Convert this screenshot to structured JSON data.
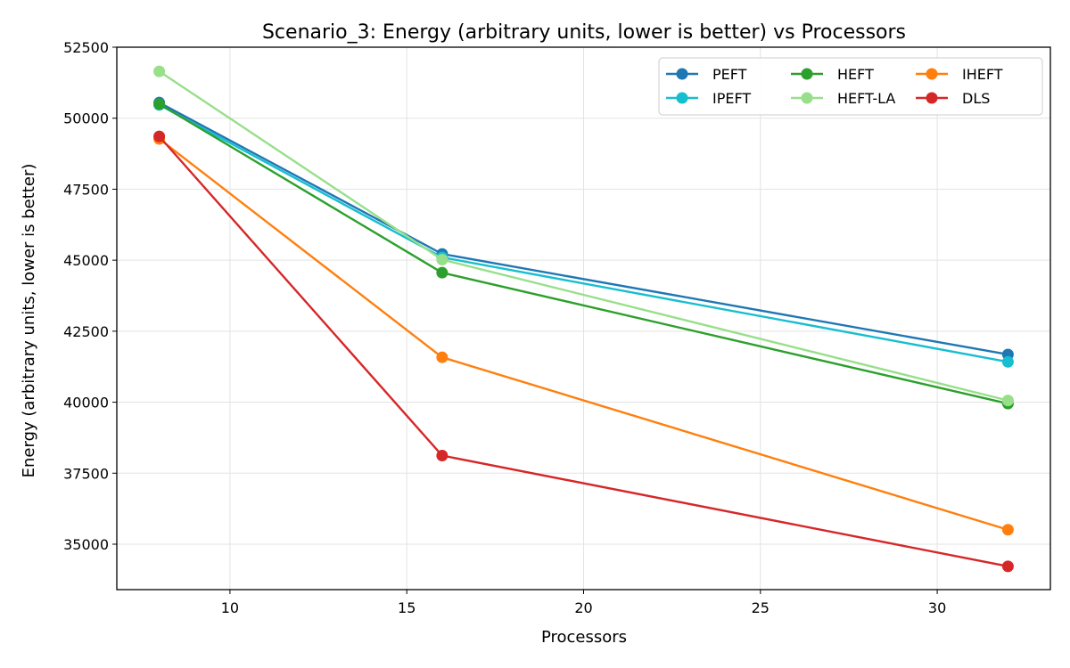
{
  "chart_data": {
    "type": "line",
    "title": "Scenario_3: Energy (arbitrary units, lower is better) vs Processors",
    "xlabel": "Processors",
    "ylabel": "Energy (arbitrary units, lower is better)",
    "xlim": [
      6.8,
      33.2
    ],
    "ylim": [
      33400,
      52500
    ],
    "xticks": [
      10,
      15,
      20,
      25,
      30
    ],
    "yticks": [
      35000,
      37500,
      40000,
      42500,
      45000,
      47500,
      50000,
      52500
    ],
    "grid": true,
    "legend_position": "top-right",
    "legend_columns": 3,
    "x": [
      8,
      16,
      32
    ],
    "series": [
      {
        "name": "PEFT",
        "color": "#1f77b4",
        "values": [
          50550,
          45220,
          41680
        ]
      },
      {
        "name": "IPEFT",
        "color": "#17becf",
        "values": [
          50470,
          45100,
          41420
        ]
      },
      {
        "name": "HEFT",
        "color": "#2ca02c",
        "values": [
          50500,
          44560,
          39950
        ]
      },
      {
        "name": "HEFT-LA",
        "color": "#98df8a",
        "values": [
          51650,
          45020,
          40060
        ]
      },
      {
        "name": "IHEFT",
        "color": "#ff7f0e",
        "values": [
          49270,
          41580,
          35510
        ]
      },
      {
        "name": "DLS",
        "color": "#d62728",
        "values": [
          49360,
          38120,
          34220
        ]
      }
    ]
  }
}
